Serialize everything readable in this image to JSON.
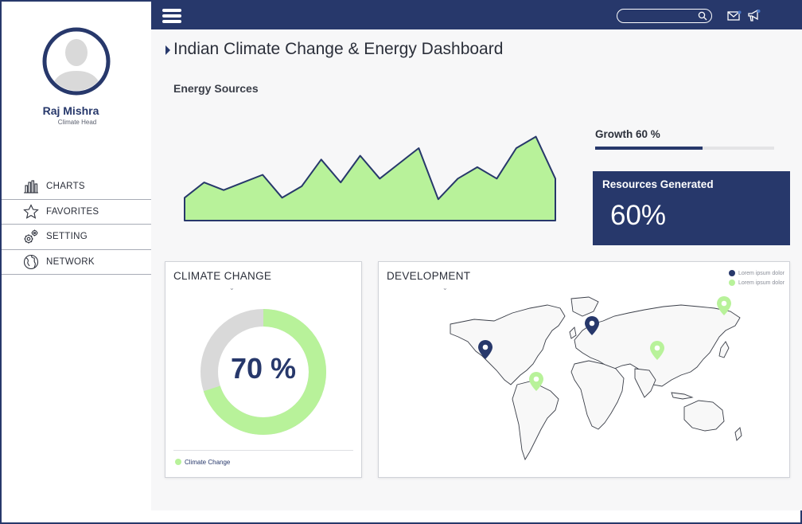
{
  "user": {
    "name": "Raj Mishra",
    "role": "Climate Head"
  },
  "nav": [
    {
      "label": "CHARTS",
      "icon": "bar-chart-icon"
    },
    {
      "label": "FAVORITES",
      "icon": "star-icon"
    },
    {
      "label": "SETTING",
      "icon": "gear-icon"
    },
    {
      "label": "NETWORK",
      "icon": "globe-icon"
    }
  ],
  "header": {
    "search_placeholder": ""
  },
  "page": {
    "title": "Indian Climate Change & Energy Dashboard"
  },
  "energy": {
    "title": "Energy Sources"
  },
  "growth": {
    "label": "Growth 60 %",
    "value": 0.6
  },
  "resources": {
    "title": "Resources Generated",
    "value": "60%"
  },
  "climate": {
    "title": "CLIMATE CHANGE",
    "value_label": "70 %",
    "value": 0.7,
    "legend": "Climate Change"
  },
  "development": {
    "title": "DEVELOPMENT",
    "legend": [
      {
        "label": "Lorem ipsum dolor",
        "color": "#27386b"
      },
      {
        "label": "Lorem ipsum dolor",
        "color": "#b8f29a"
      }
    ]
  },
  "colors": {
    "navy": "#27386b",
    "green": "#b8f29a",
    "grey": "#d9d9d9"
  },
  "chart_data": {
    "type": "area",
    "title": "Energy Sources",
    "x": [
      0,
      1,
      2,
      3,
      4,
      5,
      6,
      7,
      8,
      9,
      10,
      11,
      12,
      13,
      14,
      15,
      16,
      17,
      18,
      19
    ],
    "values": [
      30,
      50,
      40,
      50,
      60,
      30,
      45,
      80,
      50,
      85,
      55,
      75,
      95,
      28,
      55,
      70,
      55,
      95,
      110,
      55
    ],
    "ylim": [
      0,
      120
    ],
    "grid": false
  }
}
